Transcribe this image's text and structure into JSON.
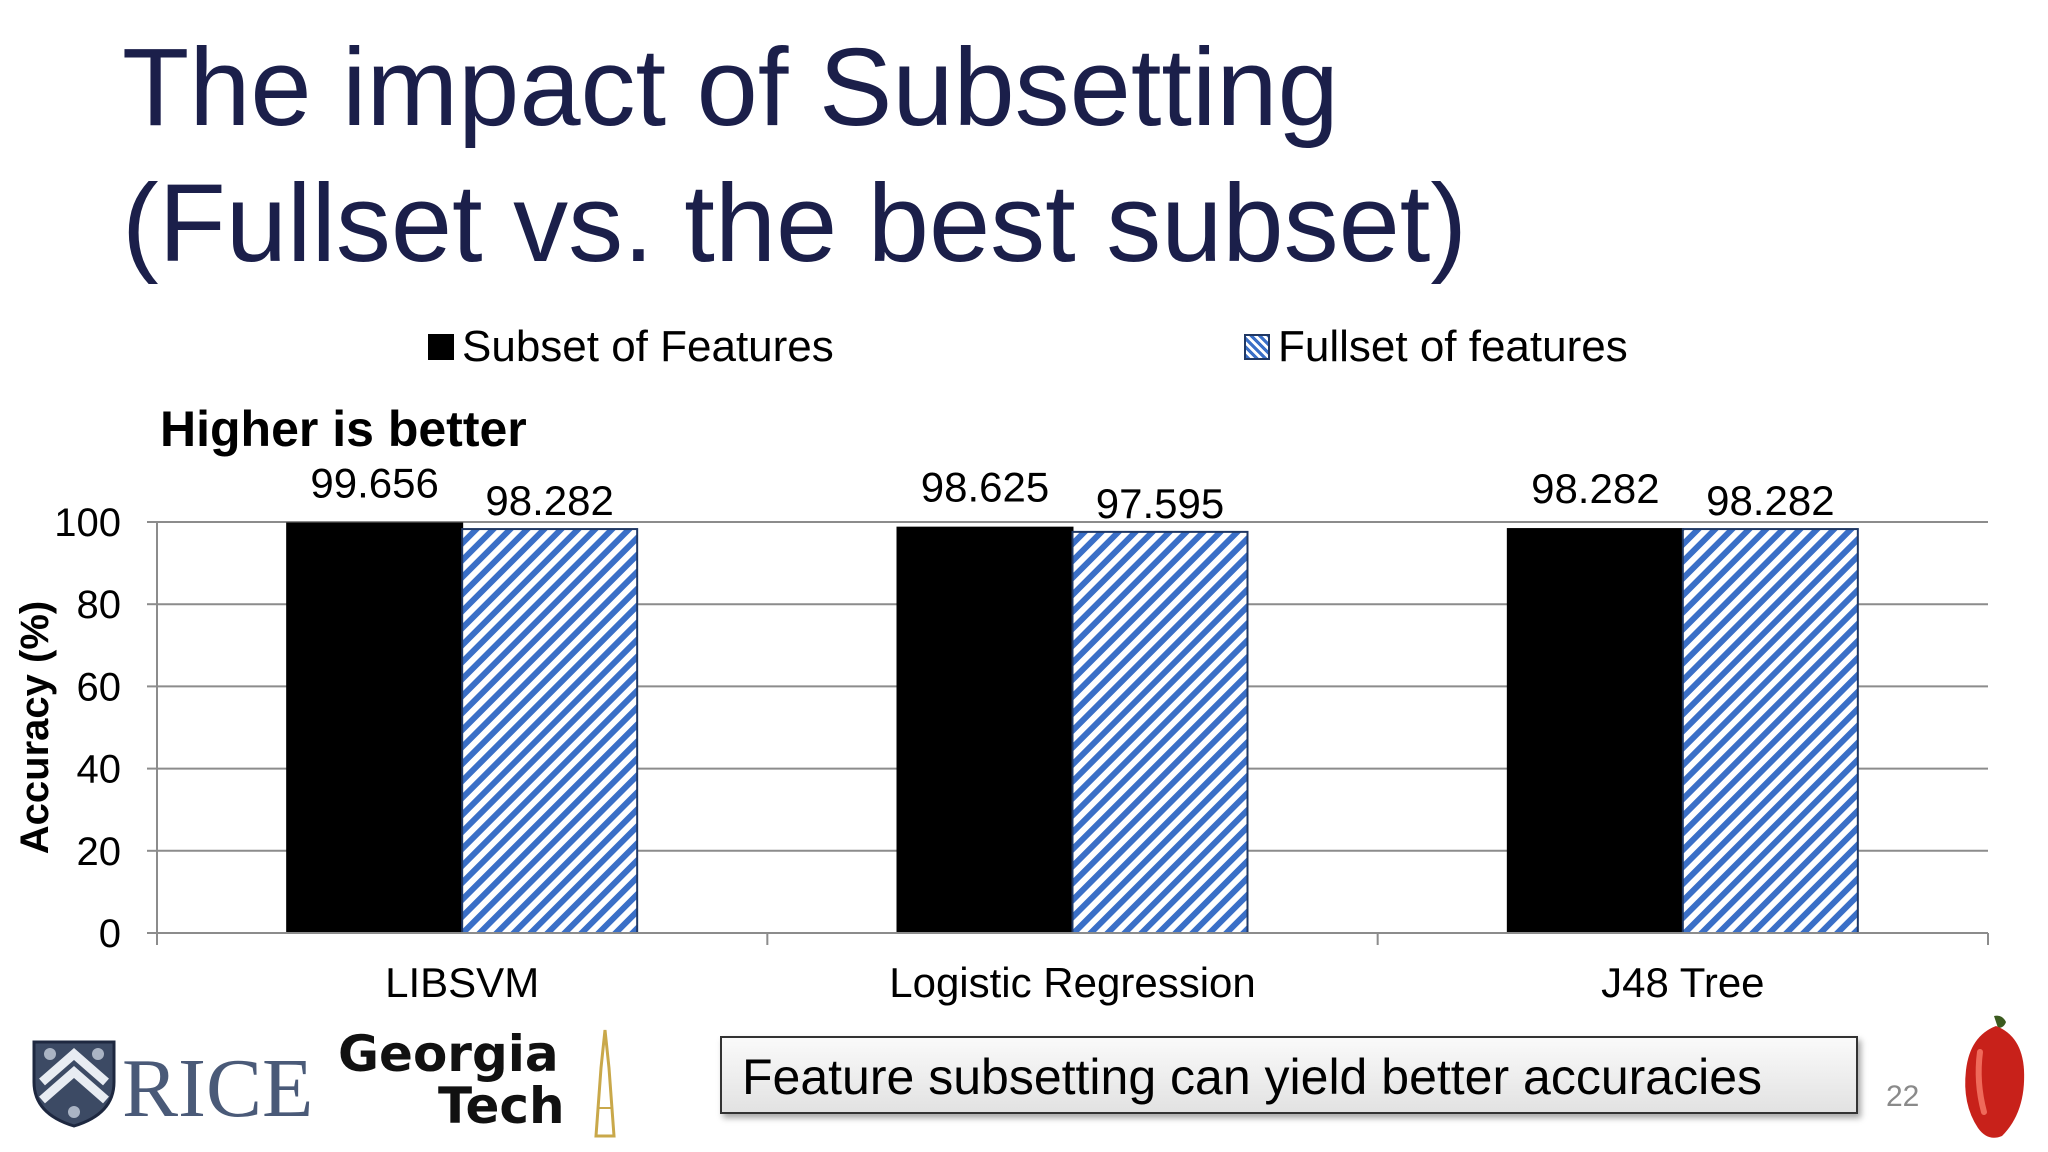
{
  "slide": {
    "title_line1": "The impact of Subsetting",
    "title_line2": "(Fullset vs. the best subset)",
    "note": "Feature subsetting can yield better accuracies",
    "page_number": "22",
    "logos": {
      "rice": "RICE",
      "gt_line1": "Georgia",
      "gt_line2": "Tech"
    }
  },
  "chart_data": {
    "type": "bar",
    "title": "Higher is better",
    "categories": [
      "LIBSVM",
      "Logistic Regression",
      "J48 Tree"
    ],
    "series": [
      {
        "name": "Subset of Features",
        "values": [
          99.656,
          98.625,
          98.282
        ],
        "labels": [
          "99.656",
          "98.625",
          "98.282"
        ],
        "color": "#000000",
        "pattern": "solid"
      },
      {
        "name": "Fullset of features",
        "values": [
          98.282,
          97.595,
          98.282
        ],
        "labels": [
          "98.282",
          "97.595",
          "98.282"
        ],
        "color": "#3a6fc7",
        "pattern": "diagonal-hatch"
      }
    ],
    "xlabel": "",
    "ylabel": "Accuracy (%)",
    "ylim": [
      0,
      100
    ],
    "yticks": [
      0,
      20,
      40,
      60,
      80,
      100
    ],
    "grid": true,
    "legend_position": "top"
  }
}
